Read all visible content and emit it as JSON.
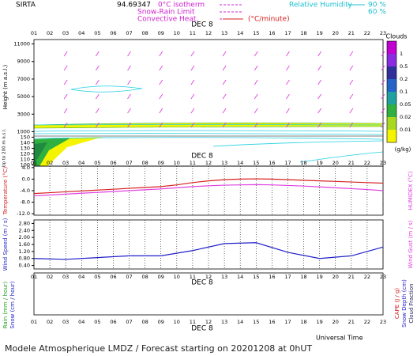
{
  "header": {
    "station": "SIRTA",
    "code": "94.69347"
  },
  "legend": {
    "isotherm": "0°C isotherm",
    "snow_rain": "Snow-Rain Limit",
    "convective": "Convective Heat.",
    "convective_unit": "(°C/minute)",
    "rh": "Relative Humidity",
    "rh_high": "90 %",
    "rh_low": "60 %"
  },
  "date_label": "DEC  8",
  "hours": [
    "01",
    "02",
    "03",
    "04",
    "05",
    "06",
    "07",
    "08",
    "09",
    "10",
    "11",
    "12",
    "13",
    "14",
    "15",
    "16",
    "17",
    "18",
    "19",
    "20",
    "21",
    "22",
    "23"
  ],
  "x_axis_title": "Universal Time",
  "footer": "Modele Atmospherique LMDZ / Forecast starting on 20201208 at 0hUT",
  "chart_data": [
    {
      "type": "contour",
      "y_label": "Height  (m a.s.l.)",
      "ylim": [
        500,
        11500
      ],
      "yticks": [
        1000,
        3000,
        5000,
        7000,
        9000,
        11000
      ],
      "low_label": "Up to 200 m a.s.l.",
      "low_ylim": [
        98,
        152
      ],
      "low_yticks": [
        100,
        110,
        120,
        130,
        140,
        150
      ],
      "colorbar_title": "Clouds",
      "colorbar_unit": "(g/kg)",
      "colorbar_levels": [
        1,
        0.5,
        0.2,
        0.1,
        0.05,
        0.02,
        0.01
      ],
      "colorbar_colors": [
        "#c000d0",
        "#8a2be2",
        "#30309a",
        "#2464c8",
        "#20a0a0",
        "#30b040",
        "#a8d820",
        "#f4f400"
      ]
    },
    {
      "type": "line",
      "ylim": [
        -12.5,
        4.5
      ],
      "y2lim": [
        -12.5,
        4.5
      ],
      "yticks": [
        {
          "value": 4,
          "label": "4.0"
        },
        {
          "value": 0,
          "label": "0.0"
        },
        {
          "value": -4,
          "label": "-4.0"
        },
        {
          "value": -8,
          "label": "-8.0"
        },
        {
          "value": -12,
          "label": "-12.0"
        }
      ],
      "series": [
        {
          "name": "Temperature (°C)",
          "color": "#d62020",
          "values": [
            -5.0,
            -4.7,
            -4.4,
            -4.1,
            -3.8,
            -3.5,
            -3.2,
            -2.9,
            -2.6,
            -2.0,
            -1.2,
            -0.6,
            -0.2,
            0.0,
            0.1,
            0.0,
            -0.2,
            -0.4,
            -0.6,
            -0.8,
            -1.0,
            -1.2,
            -1.4
          ]
        },
        {
          "name": "HUMIDEX (°C)",
          "color": "#e040e0",
          "axis": "y2",
          "values": [
            -5.8,
            -5.5,
            -5.2,
            -4.9,
            -4.6,
            -4.3,
            -4.0,
            -3.7,
            -3.4,
            -3.0,
            -2.6,
            -2.3,
            -2.1,
            -2.0,
            -1.9,
            -2.0,
            -2.2,
            -2.4,
            -2.7,
            -3.0,
            -3.3,
            -3.6,
            -4.0
          ]
        }
      ]
    },
    {
      "type": "line",
      "ylim": [
        0.2,
        3.0
      ],
      "yticks": [
        {
          "value": 2.8,
          "label": "2.80"
        },
        {
          "value": 2.4,
          "label": "2.40"
        },
        {
          "value": 2.0,
          "label": "2.00"
        },
        {
          "value": 1.6,
          "label": "1.60"
        },
        {
          "value": 1.2,
          "label": "1.20"
        },
        {
          "value": 0.8,
          "label": "0.80"
        },
        {
          "value": 0.4,
          "label": "0.40"
        }
      ],
      "x": [
        1,
        3,
        5,
        7,
        9,
        11,
        13,
        15,
        17,
        19,
        21,
        23
      ],
      "series": [
        {
          "name": "Wind Speed (m / s)",
          "color": "#2020c8",
          "values": [
            0.8,
            0.75,
            0.85,
            0.95,
            0.95,
            1.25,
            1.65,
            1.7,
            1.15,
            0.8,
            0.95,
            1.45
          ]
        }
      ],
      "y2_label": "Wind Gust (m / s)",
      "y2_color": "#e040e0"
    },
    {
      "type": "empty",
      "y_labels": [
        {
          "text": "Rain (mm / hour)",
          "color": "#20a020"
        },
        {
          "text": "Snow (cm / hour)",
          "color": "#2020c8"
        }
      ],
      "y2_labels": [
        {
          "text": "CAPE (J / g)",
          "color": "#d62020"
        },
        {
          "text": "Snow Depth (cm)",
          "color": "#2020c8"
        },
        {
          "text": "Cloud Fraction",
          "color": "#202060"
        }
      ]
    }
  ]
}
